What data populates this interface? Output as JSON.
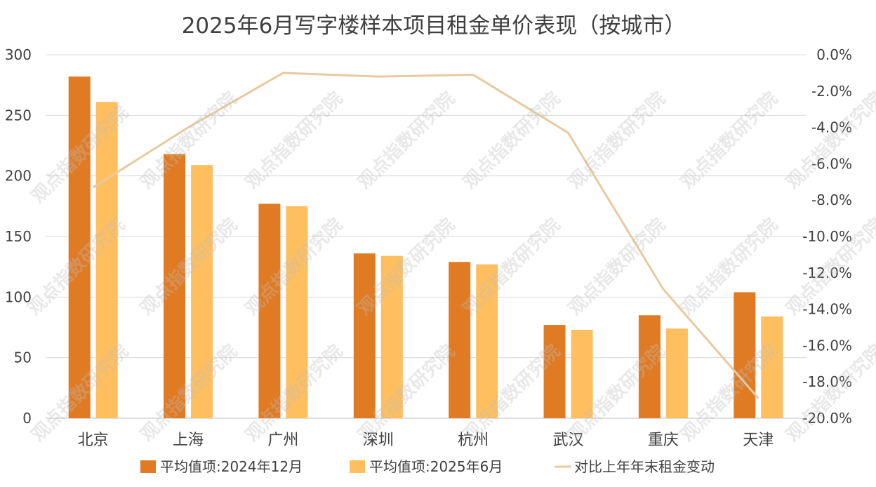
{
  "chart_data": {
    "type": "bar",
    "title": "2025年6月写字楼样本项目租金单价表现（按城市）",
    "categories": [
      "北京",
      "上海",
      "广州",
      "深圳",
      "杭州",
      "武汉",
      "重庆",
      "天津"
    ],
    "series": [
      {
        "name": "平均值项:2024年12月",
        "type": "bar",
        "axis": "left",
        "color": "#E07B24",
        "values": [
          282,
          218,
          177,
          136,
          129,
          77,
          85,
          104
        ]
      },
      {
        "name": "平均值项:2025年6月",
        "type": "bar",
        "axis": "left",
        "color": "#FFBF5F",
        "values": [
          261,
          209,
          175,
          134,
          127,
          73,
          74,
          84
        ]
      },
      {
        "name": "对比上年年末租金变动",
        "type": "line",
        "axis": "right",
        "color": "#E8C9A0",
        "values": [
          -7.3,
          -4.0,
          -1.0,
          -1.2,
          -1.1,
          -4.3,
          -12.9,
          -18.9
        ]
      }
    ],
    "y_left": {
      "min": 0,
      "max": 300,
      "ticks": [
        "0",
        "50",
        "100",
        "150",
        "200",
        "250",
        "300"
      ]
    },
    "y_right": {
      "min": -20,
      "max": 0,
      "ticks": [
        "0.0%",
        "-2.0%",
        "-4.0%",
        "-6.0%",
        "-8.0%",
        "-10.0%",
        "-12.0%",
        "-14.0%",
        "-16.0%",
        "-18.0%",
        "-20.0%"
      ]
    },
    "grid": true,
    "legend_position": "bottom"
  },
  "watermark": "观点指数研究院"
}
